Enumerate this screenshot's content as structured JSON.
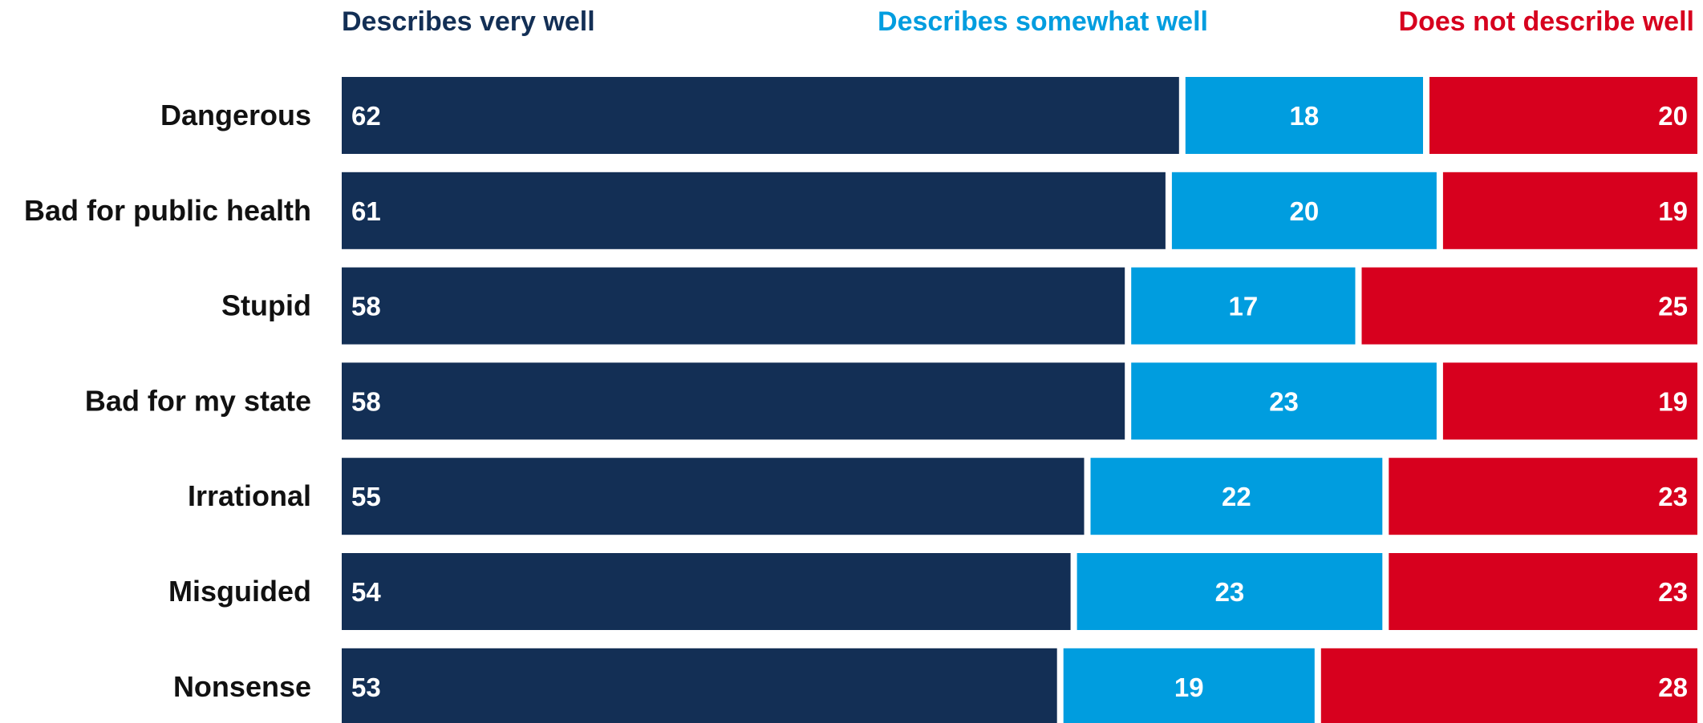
{
  "chart_data": {
    "type": "bar",
    "orientation": "horizontal",
    "stacked": true,
    "categories": [
      "Dangerous",
      "Bad for public health",
      "Stupid",
      "Bad for my state",
      "Irrational",
      "Misguided",
      "Nonsense"
    ],
    "series": [
      {
        "name": "Describes very well",
        "color": "#132F55",
        "values": [
          62,
          61,
          58,
          58,
          55,
          54,
          53
        ]
      },
      {
        "name": "Describes somewhat well",
        "color": "#009DDF",
        "values": [
          18,
          20,
          17,
          23,
          22,
          23,
          19
        ]
      },
      {
        "name": "Does not describe well",
        "color": "#D7001E",
        "values": [
          20,
          19,
          25,
          19,
          23,
          23,
          28
        ]
      }
    ],
    "xlim": [
      0,
      100
    ],
    "legend_position": "top",
    "grid": false,
    "data_labels": true
  }
}
